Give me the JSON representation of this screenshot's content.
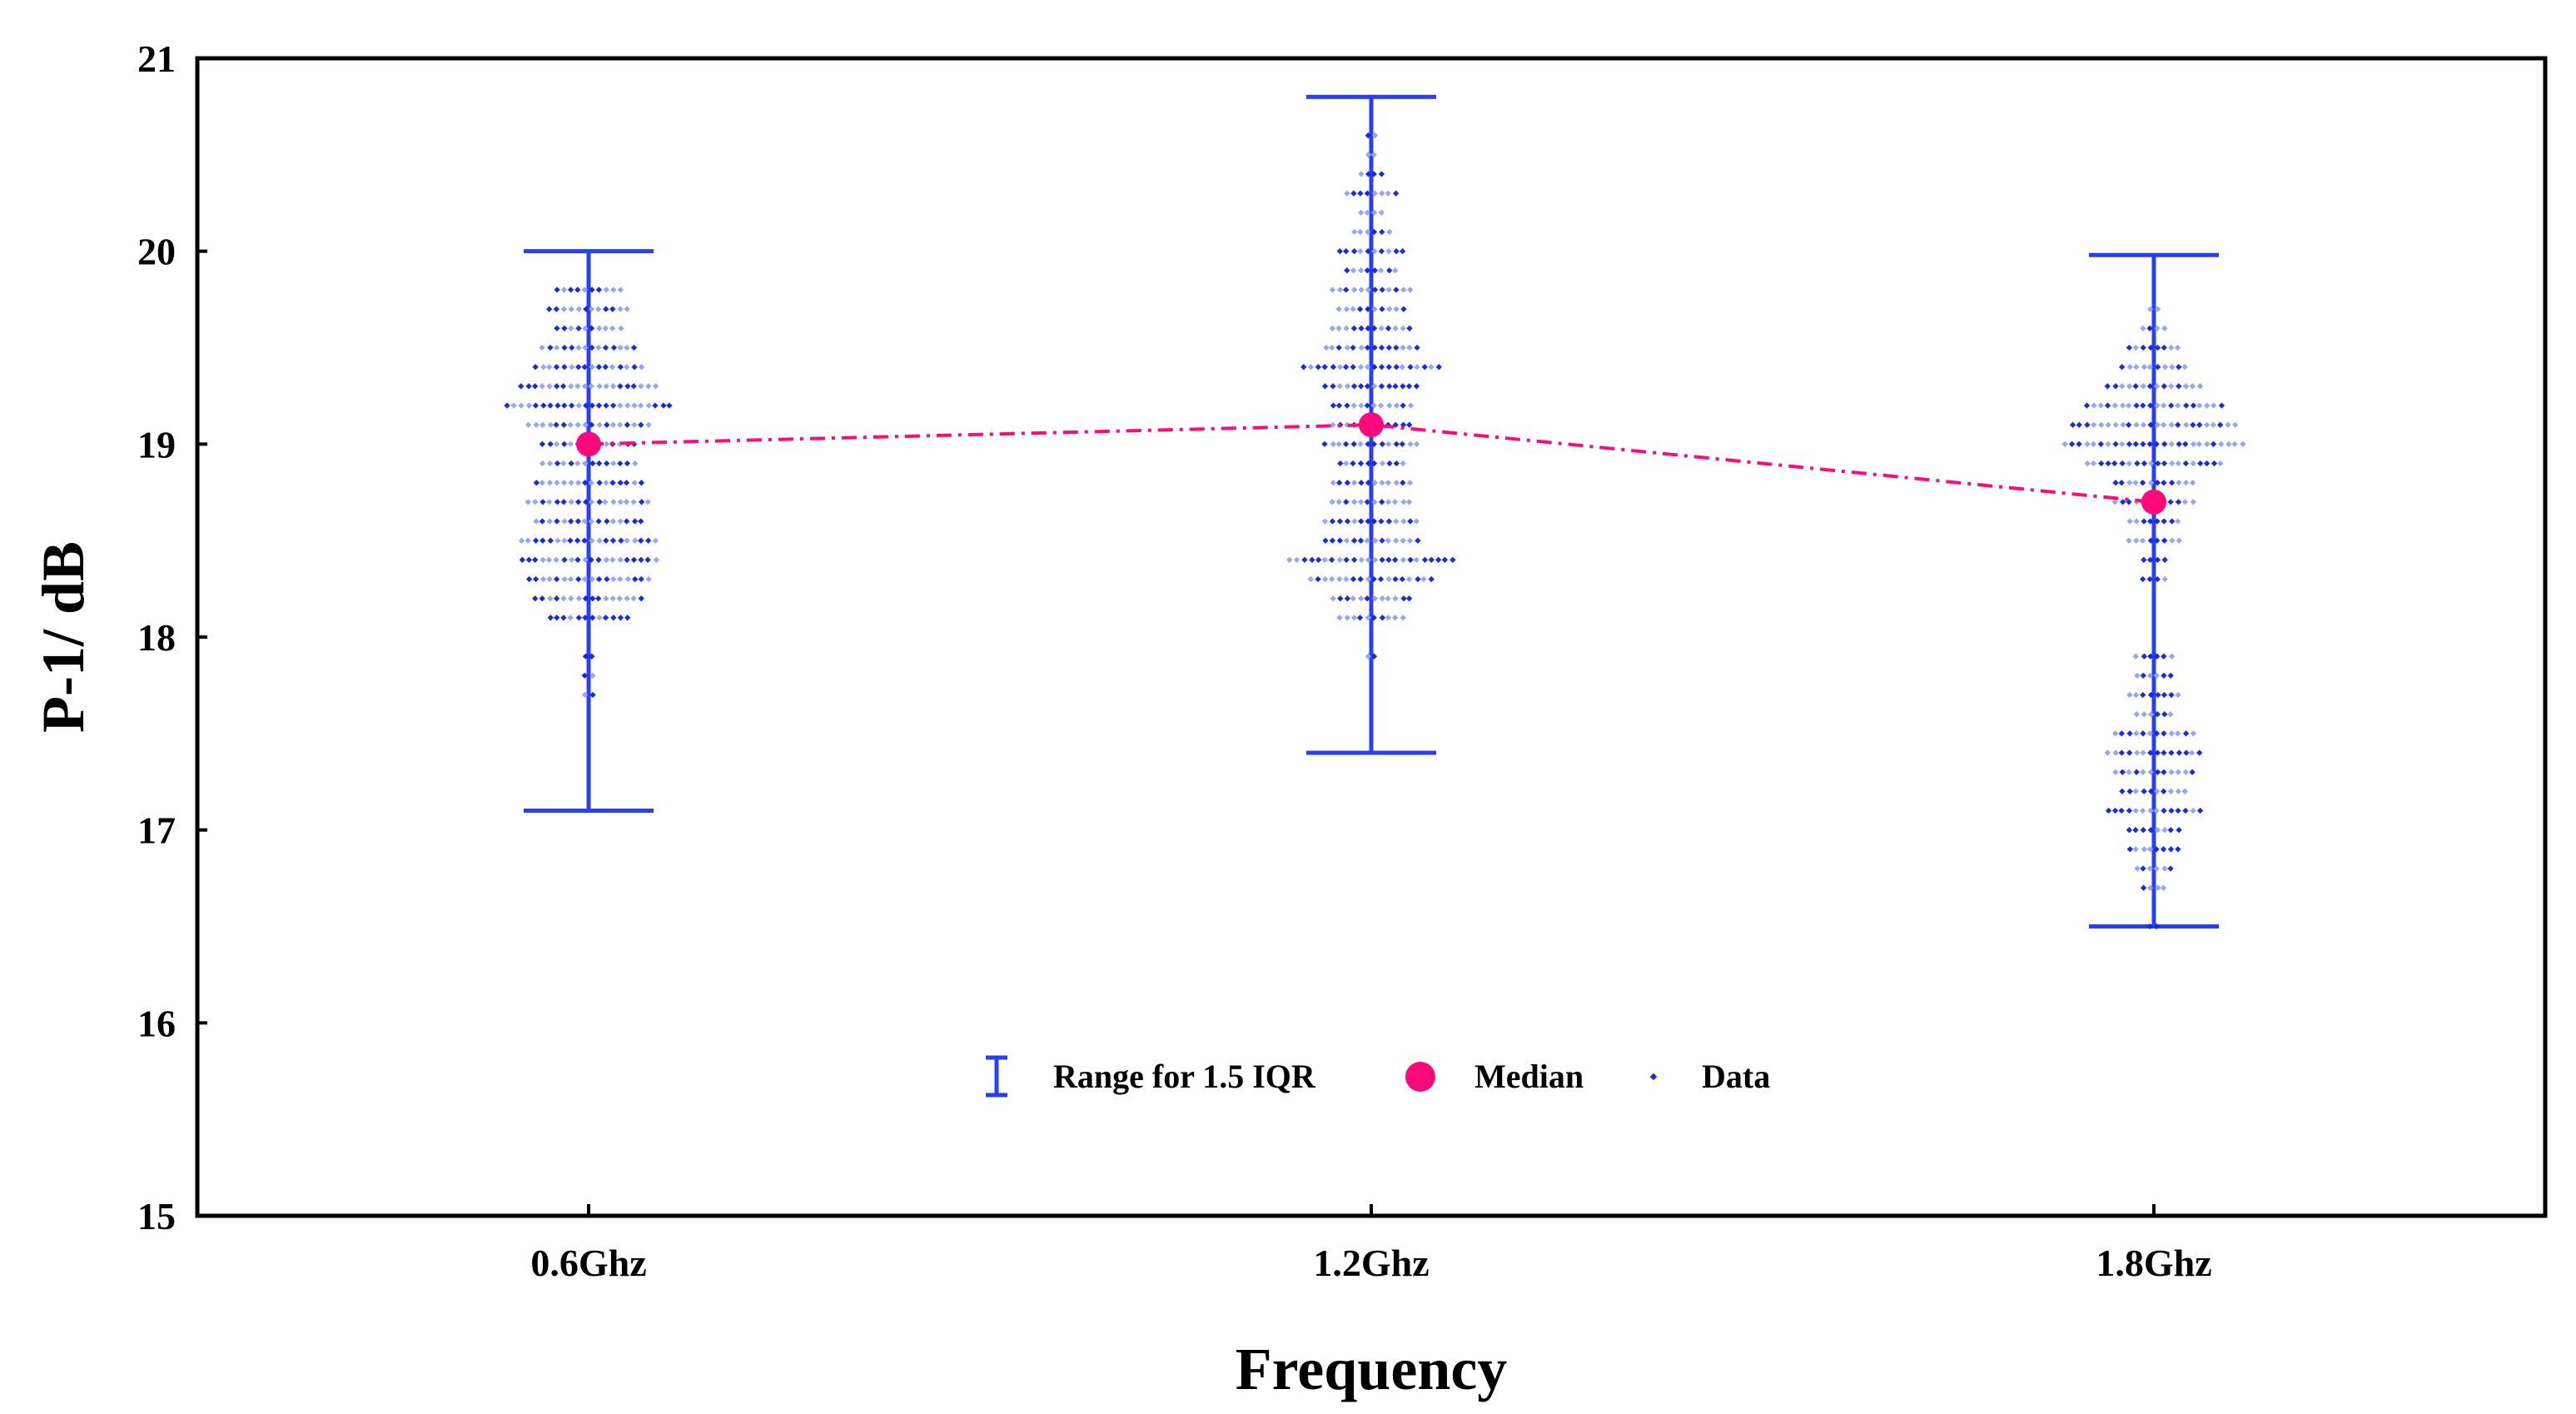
{
  "chart_data": {
    "type": "scatter",
    "title": "",
    "xlabel": "Frequency",
    "ylabel": "P-1/ dB",
    "categories": [
      "0.6Ghz",
      "1.2Ghz",
      "1.8Ghz"
    ],
    "ylim": [
      15,
      21
    ],
    "yticks": [
      "15",
      "16",
      "17",
      "18",
      "19",
      "20",
      "21"
    ],
    "grid": false,
    "range_iqr": [
      {
        "category": "0.6Ghz",
        "low": 17.1,
        "high": 20.0
      },
      {
        "category": "1.2Ghz",
        "low": 17.4,
        "high": 20.8
      },
      {
        "category": "1.8Ghz",
        "low": 16.5,
        "high": 19.98
      }
    ],
    "median": [
      19.0,
      19.1,
      18.7
    ],
    "data_distribution": [
      {
        "category": "0.6Ghz",
        "levels": [
          [
            19.8,
            10
          ],
          [
            19.7,
            12
          ],
          [
            19.6,
            10
          ],
          [
            19.5,
            14
          ],
          [
            19.4,
            16
          ],
          [
            19.3,
            20
          ],
          [
            19.2,
            24
          ],
          [
            19.1,
            18
          ],
          [
            19.0,
            14
          ],
          [
            18.9,
            14
          ],
          [
            18.8,
            16
          ],
          [
            18.7,
            18
          ],
          [
            18.6,
            16
          ],
          [
            18.5,
            20
          ],
          [
            18.4,
            20
          ],
          [
            18.3,
            18
          ],
          [
            18.2,
            16
          ],
          [
            18.1,
            12
          ],
          [
            17.9,
            2
          ],
          [
            17.8,
            2
          ],
          [
            17.7,
            2
          ]
        ]
      },
      {
        "category": "1.2Ghz",
        "levels": [
          [
            20.6,
            2
          ],
          [
            20.5,
            2
          ],
          [
            20.4,
            4
          ],
          [
            20.3,
            8
          ],
          [
            20.2,
            4
          ],
          [
            20.1,
            6
          ],
          [
            20.0,
            10
          ],
          [
            19.9,
            8
          ],
          [
            19.8,
            12
          ],
          [
            19.7,
            10
          ],
          [
            19.6,
            12
          ],
          [
            19.5,
            14
          ],
          [
            19.4,
            20
          ],
          [
            19.3,
            14
          ],
          [
            19.2,
            12
          ],
          [
            19.1,
            12
          ],
          [
            19.0,
            14
          ],
          [
            18.9,
            10
          ],
          [
            18.8,
            12
          ],
          [
            18.7,
            12
          ],
          [
            18.6,
            14
          ],
          [
            18.5,
            14
          ],
          [
            18.4,
            24
          ],
          [
            18.3,
            18
          ],
          [
            18.2,
            12
          ],
          [
            18.1,
            10
          ],
          [
            17.9,
            2
          ]
        ]
      },
      {
        "category": "1.8Ghz",
        "levels": [
          [
            19.7,
            2
          ],
          [
            19.6,
            4
          ],
          [
            19.5,
            8
          ],
          [
            19.4,
            10
          ],
          [
            19.3,
            14
          ],
          [
            19.2,
            20
          ],
          [
            19.1,
            24
          ],
          [
            19.0,
            26
          ],
          [
            18.9,
            20
          ],
          [
            18.8,
            12
          ],
          [
            18.7,
            12
          ],
          [
            18.6,
            8
          ],
          [
            18.5,
            8
          ],
          [
            18.4,
            4
          ],
          [
            18.3,
            4
          ],
          [
            17.9,
            6
          ],
          [
            17.8,
            6
          ],
          [
            17.7,
            8
          ],
          [
            17.6,
            6
          ],
          [
            17.5,
            12
          ],
          [
            17.4,
            14
          ],
          [
            17.3,
            12
          ],
          [
            17.2,
            10
          ],
          [
            17.1,
            14
          ],
          [
            17.0,
            8
          ],
          [
            16.9,
            8
          ],
          [
            16.8,
            6
          ],
          [
            16.7,
            4
          ],
          [
            16.5,
            2
          ]
        ]
      }
    ],
    "legend": {
      "position": "bottom-center",
      "items": [
        {
          "label": "Range for 1.5 IQR",
          "symbol": "errorbar"
        },
        {
          "label": "Median",
          "symbol": "circle"
        },
        {
          "label": "Data",
          "symbol": "dot"
        }
      ]
    },
    "colors": {
      "range": "#2b3ff0",
      "median": "#ff0a7a",
      "data_dark": "#1a2bd9",
      "data_light": "#9aa6ec"
    }
  }
}
